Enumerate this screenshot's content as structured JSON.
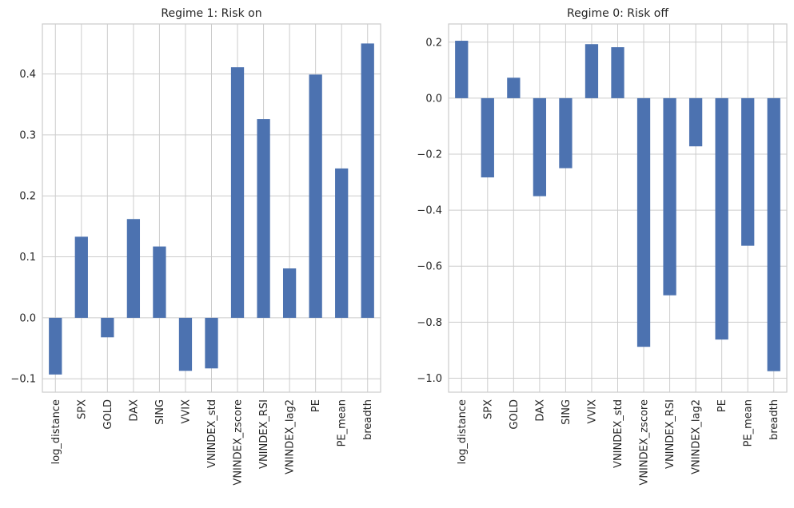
{
  "chart_data": [
    {
      "type": "bar",
      "title": "Regime 1: Risk on",
      "xlabel": "",
      "ylabel": "",
      "color": "#4c72b0",
      "grid": true,
      "ylim": [
        -0.122,
        0.482
      ],
      "yticks": [
        -0.1,
        0.0,
        0.1,
        0.2,
        0.3,
        0.4
      ],
      "ytick_labels": [
        "−0.1",
        "0.0",
        "0.1",
        "0.2",
        "0.3",
        "0.4"
      ],
      "categories": [
        "log_distance",
        "SPX",
        "GOLD",
        "DAX",
        "SING",
        "VVIX",
        "VNINDEX_std",
        "VNINDEX_zscore",
        "VNINDEX_RSI",
        "VNINDEX_lag2",
        "PE",
        "PE_mean",
        "breadth"
      ],
      "values": [
        -0.093,
        0.133,
        -0.032,
        0.162,
        0.117,
        -0.087,
        -0.083,
        0.411,
        0.326,
        0.081,
        0.399,
        0.245,
        0.45
      ]
    },
    {
      "type": "bar",
      "title": "Regime 0: Risk off",
      "xlabel": "",
      "ylabel": "",
      "color": "#4c72b0",
      "grid": true,
      "ylim": [
        -1.05,
        0.265
      ],
      "yticks": [
        -1.0,
        -0.8,
        -0.6,
        -0.4,
        -0.2,
        0.0,
        0.2
      ],
      "ytick_labels": [
        "−1.0",
        "−0.8",
        "−0.6",
        "−0.4",
        "−0.2",
        "0.0",
        "0.2"
      ],
      "categories": [
        "log_distance",
        "SPX",
        "GOLD",
        "DAX",
        "SING",
        "VVIX",
        "VNINDEX_std",
        "VNINDEX_zscore",
        "VNINDEX_RSI",
        "VNINDEX_lag2",
        "PE",
        "PE_mean",
        "breadth"
      ],
      "values": [
        0.205,
        -0.283,
        0.073,
        -0.35,
        -0.25,
        0.193,
        0.182,
        -0.888,
        -0.704,
        -0.172,
        -0.862,
        -0.527,
        -0.975
      ]
    }
  ]
}
